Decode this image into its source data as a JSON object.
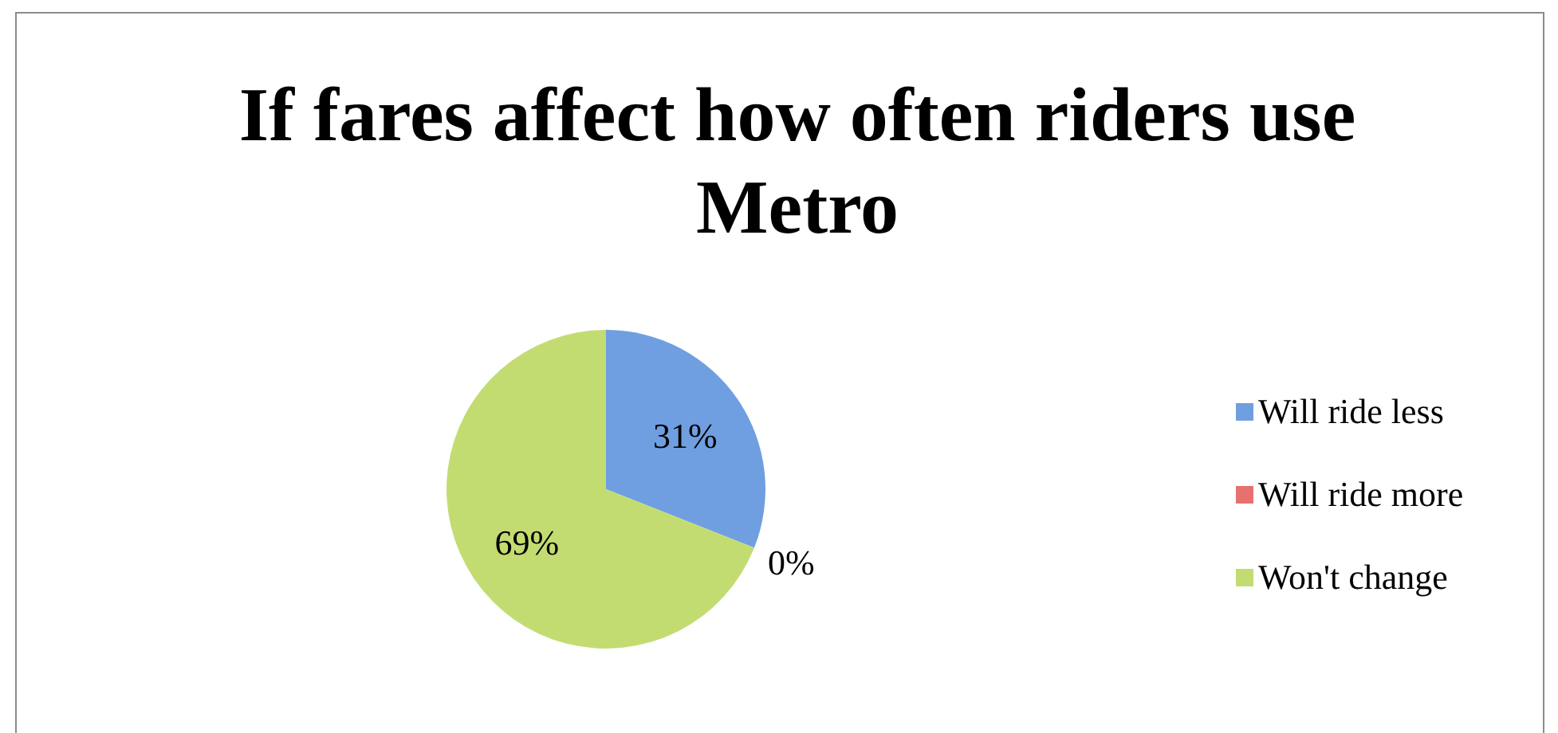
{
  "chart_data": {
    "type": "pie",
    "title": "If fares affect how often riders use Metro",
    "categories": [
      "Will ride less",
      "Will ride more",
      "Won't change"
    ],
    "values": [
      31,
      0,
      69
    ],
    "colors": [
      "#6f9fe0",
      "#e8706e",
      "#c3dc72"
    ],
    "value_labels": [
      "31%",
      "0%",
      "69%"
    ],
    "legend": "right"
  }
}
